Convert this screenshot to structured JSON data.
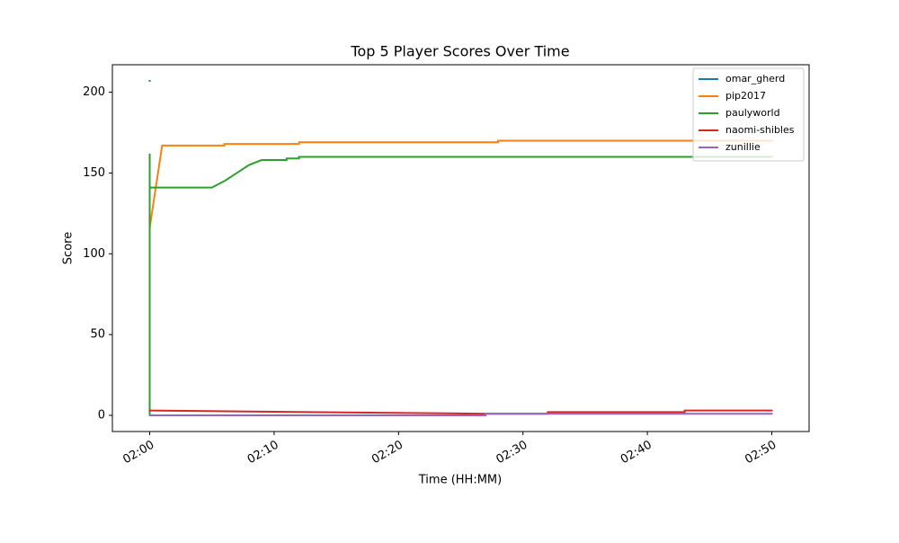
{
  "chart_data": {
    "type": "line",
    "title": "Top 5 Player Scores Over Time",
    "x_label": "Time (HH:MM)",
    "y_label": "Score",
    "xlim": [
      "01:57",
      "02:53"
    ],
    "xticks": [
      "02:00",
      "02:10",
      "02:20",
      "02:30",
      "02:40",
      "02:50"
    ],
    "ylim": [
      -10,
      217
    ],
    "yticks": [
      0,
      50,
      100,
      150,
      200
    ],
    "legend": "upper right",
    "grid": false,
    "series": [
      {
        "name": "omar_gherd",
        "color": "#1f77b4",
        "x": [
          "02:00",
          "02:00"
        ],
        "values": [
          207,
          207
        ]
      },
      {
        "name": "pip2017",
        "color": "#ff7f0e",
        "x": [
          "02:00",
          "02:00",
          "02:01",
          "02:06",
          "02:06",
          "02:12",
          "02:12",
          "02:28",
          "02:28",
          "02:50"
        ],
        "values": [
          115,
          116,
          167,
          167,
          168,
          168,
          169,
          169,
          170,
          170
        ]
      },
      {
        "name": "paulyworld",
        "color": "#2ca02c",
        "x": [
          "02:00",
          "02:00",
          "02:00",
          "02:05",
          "02:06",
          "02:07",
          "02:08",
          "02:09",
          "02:11",
          "02:11",
          "02:12",
          "02:12",
          "02:50"
        ],
        "values": [
          0,
          162,
          141,
          141,
          145,
          150,
          155,
          158,
          158,
          159,
          159,
          160,
          160
        ]
      },
      {
        "name": "naomi-shibles",
        "color": "#d62728",
        "x": [
          "02:00",
          "02:27",
          "02:32",
          "02:32",
          "02:43",
          "02:43",
          "02:50"
        ],
        "values": [
          3,
          1,
          1,
          2,
          2,
          3,
          3
        ]
      },
      {
        "name": "zunillie",
        "color": "#9467bd",
        "x": [
          "02:00",
          "02:27",
          "02:27",
          "02:50"
        ],
        "values": [
          0,
          0,
          1,
          1
        ]
      }
    ]
  }
}
